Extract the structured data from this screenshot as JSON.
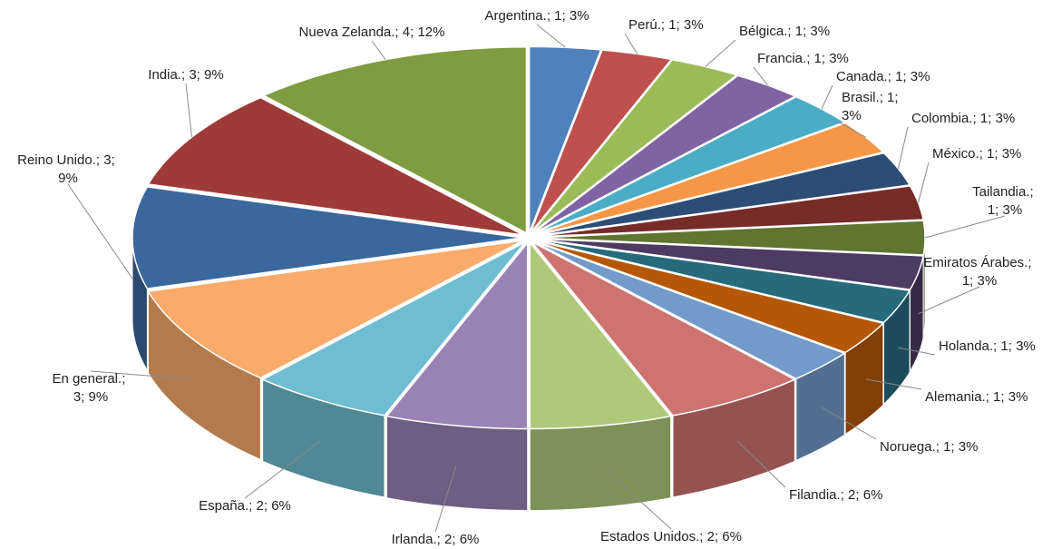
{
  "chart_data": {
    "type": "pie3d",
    "separator": "; ",
    "categories": [
      "Argentina.",
      "Perú.",
      "Bélgica.",
      "Francia.",
      "Canada.",
      "Brasil.",
      "Colombia.",
      "México.",
      "Tailandia.",
      "Emiratos Árabes.",
      "Holanda.",
      "Alemania.",
      "Noruega.",
      "Filandia.",
      "Estados Unidos.",
      "Irlanda.",
      "España.",
      "En general.",
      "Reino Unido.",
      "India.",
      "Nueva Zelanda."
    ],
    "values": [
      1,
      1,
      1,
      1,
      1,
      1,
      1,
      1,
      1,
      1,
      1,
      1,
      1,
      2,
      2,
      2,
      2,
      3,
      3,
      3,
      4
    ],
    "percent_labels": [
      "3%",
      "3%",
      "3%",
      "3%",
      "3%",
      "3%",
      "3%",
      "3%",
      "3%",
      "3%",
      "3%",
      "3%",
      "3%",
      "6%",
      "6%",
      "6%",
      "6%",
      "9%",
      "9%",
      "9%",
      "12%"
    ],
    "colors": [
      "#4F81BD",
      "#C0504D",
      "#9BBB59",
      "#8064A2",
      "#4BACC6",
      "#F79646",
      "#2C4D75",
      "#772C2A",
      "#5F7530",
      "#4D3B62",
      "#276A7C",
      "#B65708",
      "#729ACA",
      "#CD7371",
      "#AFC97A",
      "#9983B5",
      "#6FBDD1",
      "#F9AB6B",
      "#3A679C",
      "#9E3B38",
      "#7E9C40"
    ]
  }
}
